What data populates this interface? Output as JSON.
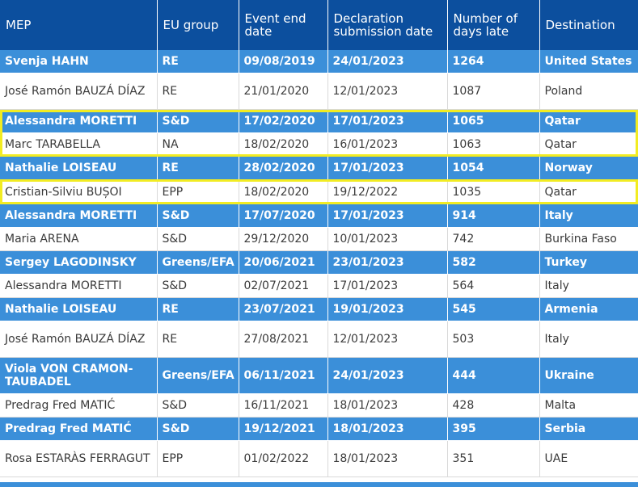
{
  "table": {
    "headers": [
      "MEP",
      "EU group",
      "Event end date",
      "Declaration submission date",
      "Number of days late",
      "Destination"
    ],
    "rows": [
      [
        "Svenja HAHN",
        "RE",
        "09/08/2019",
        "24/01/2023",
        "1264",
        "United States"
      ],
      [
        "José Ramón BAUZÁ DÍAZ",
        "RE",
        "21/01/2020",
        "12/01/2023",
        "1087",
        "Poland"
      ],
      [
        "Alessandra MORETTI",
        "S&D",
        "17/02/2020",
        "17/01/2023",
        "1065",
        "Qatar"
      ],
      [
        "Marc TARABELLA",
        "NA",
        "18/02/2020",
        "16/01/2023",
        "1063",
        "Qatar"
      ],
      [
        "Nathalie LOISEAU",
        "RE",
        "28/02/2020",
        "17/01/2023",
        "1054",
        "Norway"
      ],
      [
        "Cristian-Silviu BUȘOI",
        "EPP",
        "18/02/2020",
        "19/12/2022",
        "1035",
        "Qatar"
      ],
      [
        "Alessandra MORETTI",
        "S&D",
        "17/07/2020",
        "17/01/2023",
        "914",
        "Italy"
      ],
      [
        "Maria ARENA",
        "S&D",
        "29/12/2020",
        "10/01/2023",
        "742",
        "Burkina Faso"
      ],
      [
        "Sergey LAGODINSKY",
        "Greens/EFA",
        "20/06/2021",
        "23/01/2023",
        "582",
        "Turkey"
      ],
      [
        "Alessandra MORETTI",
        "S&D",
        "02/07/2021",
        "17/01/2023",
        "564",
        "Italy"
      ],
      [
        "Nathalie LOISEAU",
        "RE",
        "23/07/2021",
        "19/01/2023",
        "545",
        "Armenia"
      ],
      [
        "José Ramón BAUZÁ DÍAZ",
        "RE",
        "27/08/2021",
        "12/01/2023",
        "503",
        "Italy"
      ],
      [
        "Viola VON CRAMON-TAUBADEL",
        "Greens/EFA",
        "06/11/2021",
        "24/01/2023",
        "444",
        "Ukraine"
      ],
      [
        "Predrag Fred MATIĆ",
        "S&D",
        "16/11/2021",
        "18/01/2023",
        "428",
        "Malta"
      ],
      [
        "Predrag Fred MATIĆ",
        "S&D",
        "19/12/2021",
        "18/01/2023",
        "395",
        "Serbia"
      ],
      [
        "Rosa ESTARÀS FERRAGUT",
        "EPP",
        "01/02/2022",
        "18/01/2023",
        "351",
        "UAE"
      ]
    ]
  },
  "colors": {
    "header_bg": "#0c4f9e",
    "highlight_row_bg": "#3b8fd9",
    "highlight_outline": "#f2ec22"
  }
}
